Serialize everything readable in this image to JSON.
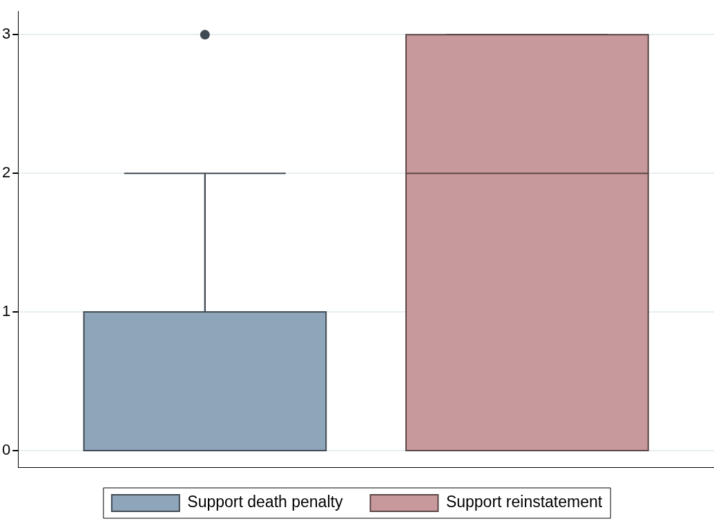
{
  "chart_data": {
    "type": "box",
    "categories": [
      null
    ],
    "series": [
      {
        "name": "Support death penalty",
        "color": "#8fa5b9",
        "boxes": [
          {
            "low": 0,
            "q1": 0,
            "median": 0,
            "q3": 1,
            "high": 2,
            "outliers": [
              3
            ]
          }
        ]
      },
      {
        "name": "Support reinstatement",
        "color": "#c8999c",
        "boxes": [
          {
            "low": 0,
            "q1": 0,
            "median": 2,
            "q3": 3,
            "high": 3
          }
        ]
      }
    ],
    "ylim": [
      -0.12,
      3.17
    ],
    "yticks": [
      0,
      1,
      2,
      3
    ],
    "grid": "y",
    "legend": "bottom"
  }
}
